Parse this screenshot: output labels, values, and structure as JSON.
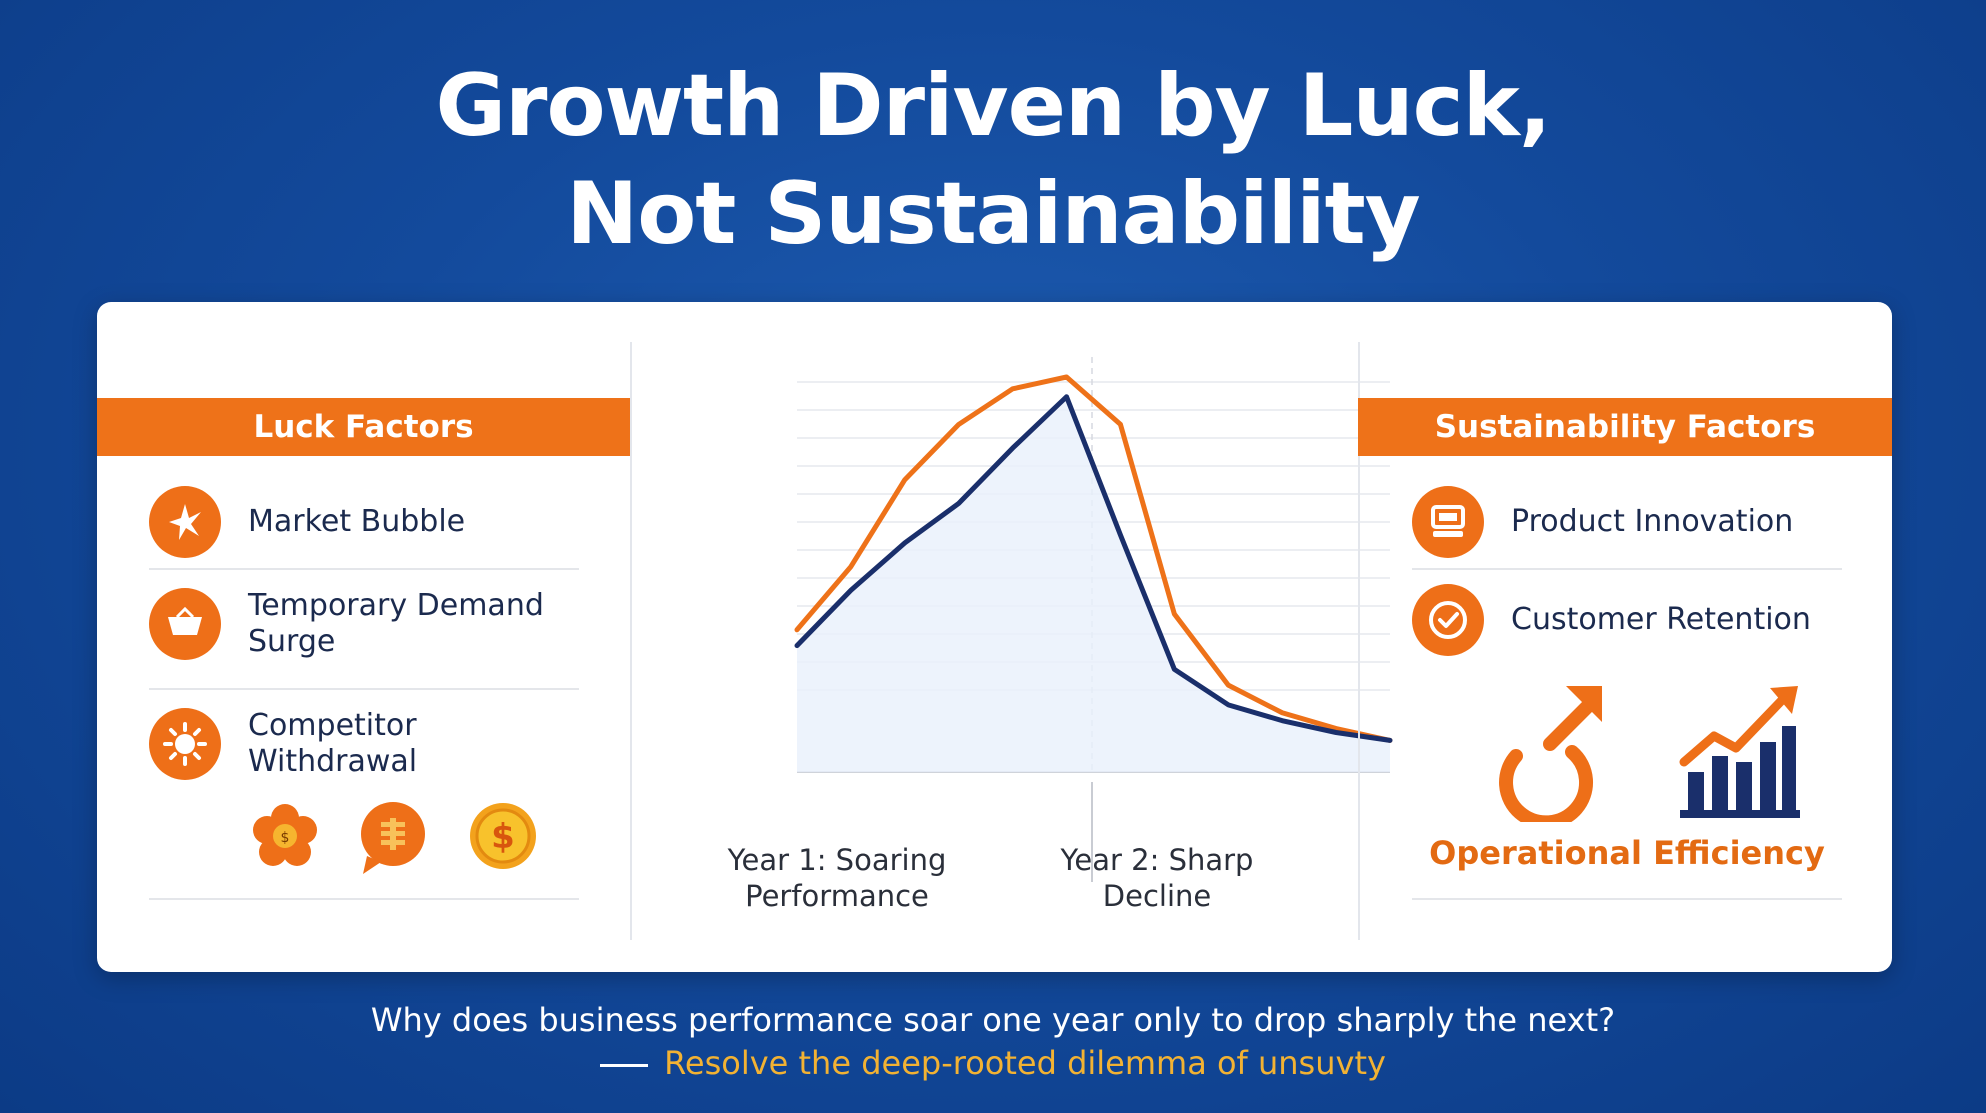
{
  "title_line1": "Growth Driven by Luck,",
  "title_line2": "Not Sustainability",
  "luck": {
    "header": "Luck Factors",
    "items": [
      {
        "label": "Market Bubble",
        "icon": "sparkle-burst-icon"
      },
      {
        "label": "Temporary Demand Surge",
        "icon": "cart-basket-icon"
      },
      {
        "label": "Competitor Withdrawal",
        "icon": "sun-gear-icon"
      }
    ],
    "mini_icons": [
      "flower-coin-icon",
      "chat-coin-icon",
      "dollar-coin-icon"
    ]
  },
  "chart": {
    "x_label_left": "Year 1: Soaring Performance",
    "x_label_right": "Year 2: Sharp Decline"
  },
  "chart_data": {
    "type": "line",
    "xlabel": "",
    "ylabel": "",
    "x_sections": [
      "Year 1: Soaring Performance",
      "Year 2: Sharp Decline"
    ],
    "x": [
      0,
      1,
      2,
      3,
      4,
      5,
      6,
      7,
      8,
      9,
      10,
      11
    ],
    "ylim": [
      0,
      100
    ],
    "grid": true,
    "series": [
      {
        "color": "#ee7219",
        "values": [
          36,
          52,
          74,
          88,
          97,
          100,
          88,
          40,
          22,
          15,
          11,
          8
        ]
      },
      {
        "color": "#1a2f6b",
        "values": [
          32,
          46,
          58,
          68,
          82,
          95,
          60,
          26,
          17,
          13,
          10,
          8
        ]
      }
    ]
  },
  "sustain": {
    "header": "Sustainability Factors",
    "items": [
      {
        "label": "Product Innovation",
        "icon": "monitor-stack-icon"
      },
      {
        "label": "Customer Retention",
        "icon": "check-circle-icon"
      }
    ],
    "efficiency_label": "Operational Efficiency"
  },
  "question": "Why does business performance soar one year only to drop sharply the next?",
  "subline": "Resolve the deep-rooted dilemma of unsuvty",
  "colors": {
    "accent": "#ee7219",
    "navy": "#1a2f6b",
    "background": "#134a9c",
    "subline": "#f2b233"
  }
}
